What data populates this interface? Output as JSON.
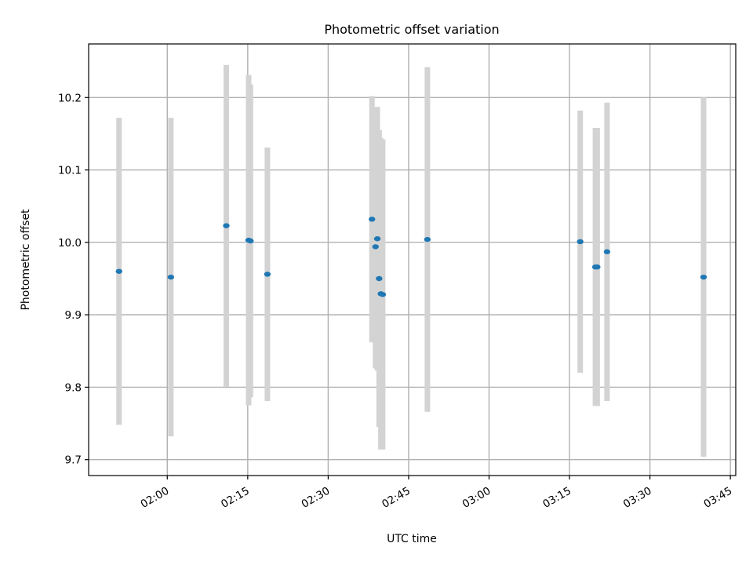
{
  "chart_data": {
    "type": "scatter",
    "title": "Photometric offset variation",
    "xlabel": "UTC time",
    "ylabel": "Photometric offset",
    "x_ticks": [
      "02:00",
      "02:15",
      "02:30",
      "02:45",
      "03:00",
      "03:15",
      "03:30",
      "03:45"
    ],
    "y_ticks": [
      "9.7",
      "9.8",
      "9.9",
      "10.0",
      "10.1",
      "10.2"
    ],
    "xlim": [
      "01:45:20",
      "03:46:00"
    ],
    "ylim": [
      9.678,
      10.274
    ],
    "grid": true,
    "point_color": "#1f77b4",
    "errorbar_color": "#d3d3d3",
    "points": [
      {
        "x": "01:51:00",
        "y": 9.96,
        "err": 0.212
      },
      {
        "x": "02:00:40",
        "y": 9.952,
        "err": 0.22
      },
      {
        "x": "02:11:00",
        "y": 10.023,
        "err": 0.222
      },
      {
        "x": "02:15:10",
        "y": 10.003,
        "err": 0.228
      },
      {
        "x": "02:15:30",
        "y": 10.002,
        "err": 0.216
      },
      {
        "x": "02:18:40",
        "y": 9.956,
        "err": 0.175
      },
      {
        "x": "02:38:10",
        "y": 10.032,
        "err": 0.17
      },
      {
        "x": "02:38:50",
        "y": 9.994,
        "err": 0.168
      },
      {
        "x": "02:39:10",
        "y": 10.005,
        "err": 0.182
      },
      {
        "x": "02:39:30",
        "y": 9.95,
        "err": 0.205
      },
      {
        "x": "02:39:50",
        "y": 9.929,
        "err": 0.215
      },
      {
        "x": "02:40:10",
        "y": 9.928,
        "err": 0.214
      },
      {
        "x": "02:48:30",
        "y": 10.004,
        "err": 0.238
      },
      {
        "x": "03:17:00",
        "y": 10.001,
        "err": 0.181
      },
      {
        "x": "03:19:50",
        "y": 9.966,
        "err": 0.192
      },
      {
        "x": "03:20:10",
        "y": 9.966,
        "err": 0.192
      },
      {
        "x": "03:22:00",
        "y": 9.987,
        "err": 0.206
      },
      {
        "x": "03:40:00",
        "y": 9.952,
        "err": 0.248
      }
    ]
  }
}
